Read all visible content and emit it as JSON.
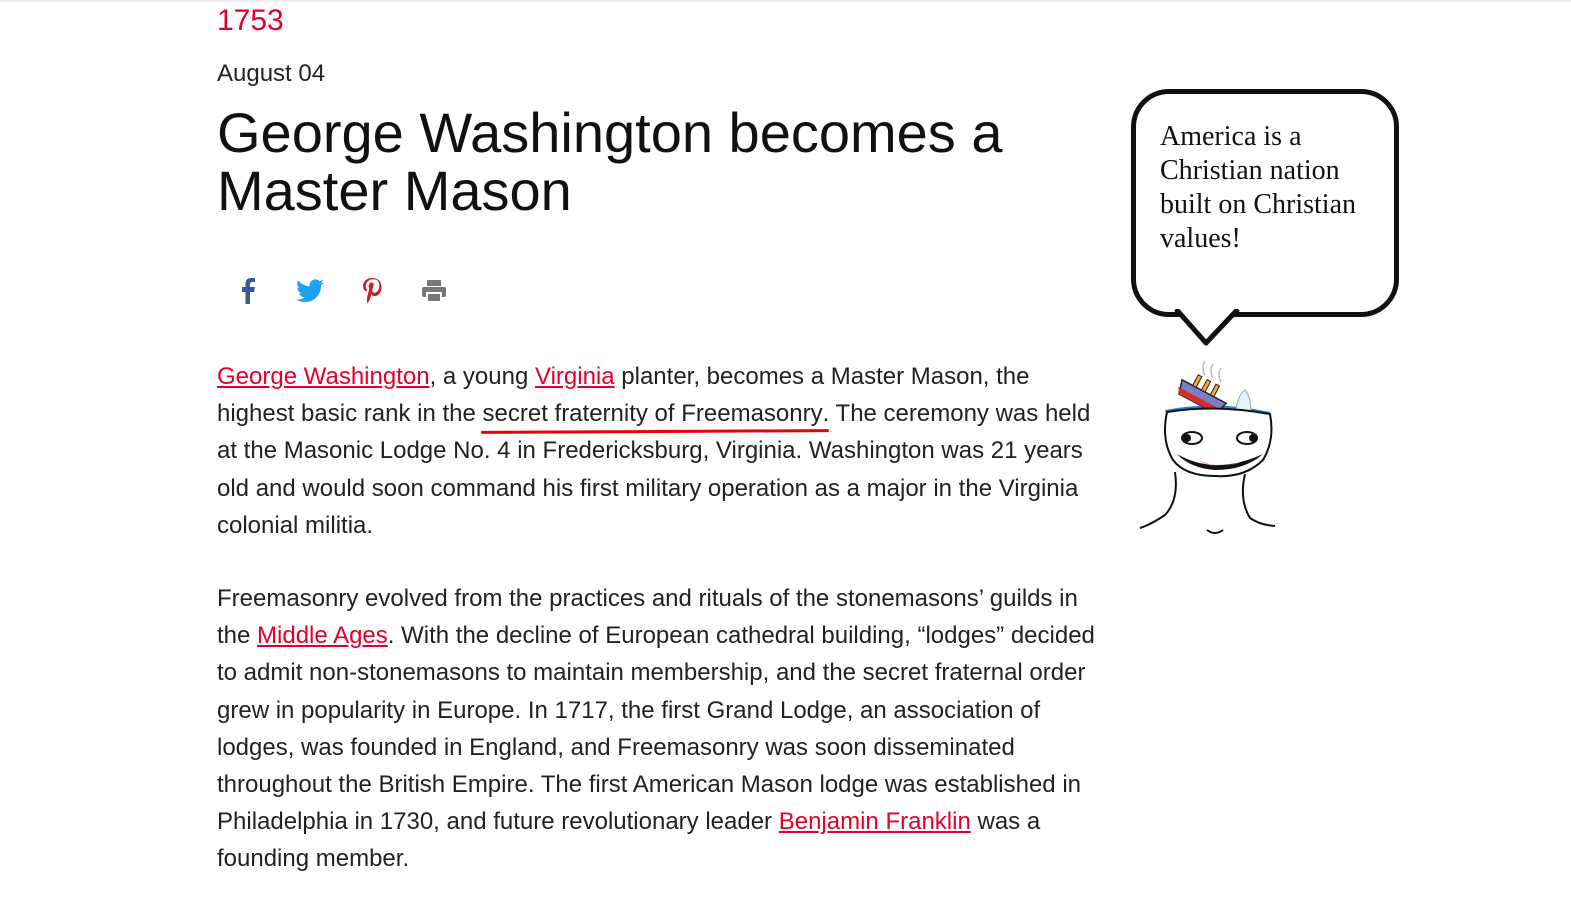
{
  "article": {
    "year": "1753",
    "date": "August 04",
    "title": "George Washington becomes a Master Mason",
    "share_icons": [
      "facebook-icon",
      "twitter-icon",
      "pinterest-icon",
      "print-icon"
    ],
    "p1": {
      "link1": "George Washington",
      "t1": ", a young ",
      "link2": "Virginia",
      "t2": " planter, becomes a Master Mason, the highest basic rank in the ",
      "marked": "secret fraternity of Freemasonry",
      "t3": ". The ceremony was held at the Masonic Lodge No. 4 in Fredericksburg, Virginia. Washington was 21 years old and would soon command his first military operation as a major in the Virginia colonial militia."
    },
    "p2": {
      "t1": "Freemasonry evolved from the practices and rituals of the stonemasons’ guilds in the ",
      "link1": "Middle Ages",
      "t2": ". With the decline of European cathedral building, “lodges” decided to admit non-stonemasons to maintain membership, and the secret fraternal order grew in popularity in Europe. In 1717, the first Grand Lodge, an association of lodges, was founded in England, and Freemasonry was soon disseminated throughout the British Empire. The first American Mason lodge was established in Philadelphia in 1730, and future revolutionary leader ",
      "link2": "Benjamin Franklin",
      "t3": " was a founding member."
    }
  },
  "meme": {
    "speech": "America is a Christian nation built on Christian values!"
  },
  "colors": {
    "accent": "#e4002b",
    "facebook": "#3b5998",
    "twitter": "#1da1f2",
    "pinterest": "#cb2027",
    "print": "#777777"
  }
}
